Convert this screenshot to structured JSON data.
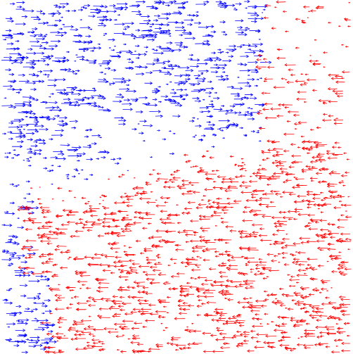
{
  "field": {
    "background": "#ffffff",
    "rightward_color": "#0000ff",
    "leftward_color": "#ff0000",
    "description_tags": [
      "rightward-arrows",
      "leftward-arrows"
    ]
  }
}
